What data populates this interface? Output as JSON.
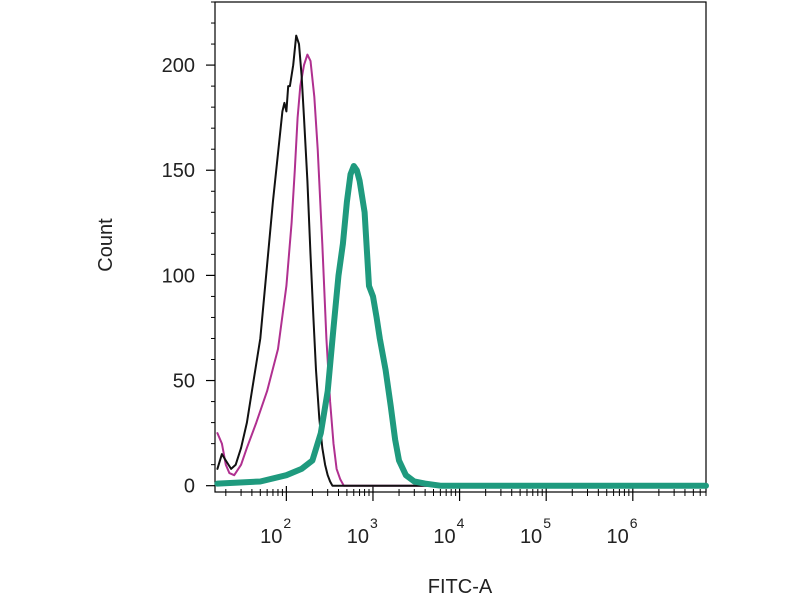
{
  "chart_data": {
    "type": "line",
    "title": "",
    "xlabel": "FITC-A",
    "ylabel": "Count",
    "x_scale": "log",
    "xlim": [
      15,
      7000000
    ],
    "ylim": [
      -3,
      230
    ],
    "x_ticks": [
      {
        "value": 100,
        "base": "10",
        "exp": "2"
      },
      {
        "value": 1000,
        "base": "10",
        "exp": "3"
      },
      {
        "value": 10000,
        "base": "10",
        "exp": "4"
      },
      {
        "value": 100000,
        "base": "10",
        "exp": "5"
      },
      {
        "value": 1000000,
        "base": "10",
        "exp": "6"
      }
    ],
    "y_ticks": [
      {
        "value": 0,
        "label": "0"
      },
      {
        "value": 50,
        "label": "50"
      },
      {
        "value": 100,
        "label": "100"
      },
      {
        "value": 150,
        "label": "150"
      },
      {
        "value": 200,
        "label": "200"
      }
    ],
    "grid": false,
    "legend": "none",
    "series": [
      {
        "color": "#111111",
        "points": [
          [
            16,
            8
          ],
          [
            18,
            15
          ],
          [
            20,
            12
          ],
          [
            23,
            8
          ],
          [
            26,
            10
          ],
          [
            30,
            18
          ],
          [
            35,
            30
          ],
          [
            40,
            45
          ],
          [
            50,
            70
          ],
          [
            60,
            105
          ],
          [
            70,
            135
          ],
          [
            80,
            158
          ],
          [
            90,
            178
          ],
          [
            95,
            182
          ],
          [
            100,
            178
          ],
          [
            105,
            190
          ],
          [
            110,
            190
          ],
          [
            120,
            200
          ],
          [
            130,
            214
          ],
          [
            140,
            210
          ],
          [
            150,
            195
          ],
          [
            160,
            175
          ],
          [
            175,
            145
          ],
          [
            190,
            110
          ],
          [
            205,
            80
          ],
          [
            220,
            55
          ],
          [
            240,
            32
          ],
          [
            260,
            18
          ],
          [
            280,
            10
          ],
          [
            300,
            5
          ],
          [
            320,
            2
          ],
          [
            340,
            0
          ],
          [
            400,
            0
          ],
          [
            1000,
            0
          ],
          [
            7000000,
            0
          ]
        ]
      },
      {
        "color": "#b03090",
        "points": [
          [
            16,
            25
          ],
          [
            18,
            20
          ],
          [
            20,
            10
          ],
          [
            22,
            6
          ],
          [
            25,
            5
          ],
          [
            30,
            10
          ],
          [
            35,
            18
          ],
          [
            45,
            30
          ],
          [
            60,
            45
          ],
          [
            80,
            65
          ],
          [
            100,
            95
          ],
          [
            115,
            125
          ],
          [
            125,
            150
          ],
          [
            135,
            175
          ],
          [
            145,
            190
          ],
          [
            160,
            200
          ],
          [
            175,
            205
          ],
          [
            190,
            202
          ],
          [
            210,
            185
          ],
          [
            230,
            160
          ],
          [
            260,
            115
          ],
          [
            290,
            70
          ],
          [
            320,
            40
          ],
          [
            350,
            20
          ],
          [
            380,
            8
          ],
          [
            420,
            3
          ],
          [
            460,
            0
          ],
          [
            1000,
            0
          ],
          [
            7000000,
            0
          ]
        ]
      },
      {
        "color": "#1f9a7e",
        "points": [
          [
            16,
            1
          ],
          [
            50,
            2
          ],
          [
            100,
            5
          ],
          [
            150,
            8
          ],
          [
            200,
            12
          ],
          [
            250,
            25
          ],
          [
            300,
            45
          ],
          [
            350,
            75
          ],
          [
            400,
            100
          ],
          [
            450,
            115
          ],
          [
            500,
            135
          ],
          [
            550,
            148
          ],
          [
            600,
            152
          ],
          [
            650,
            150
          ],
          [
            700,
            145
          ],
          [
            800,
            130
          ],
          [
            900,
            95
          ],
          [
            1000,
            90
          ],
          [
            1100,
            80
          ],
          [
            1200,
            70
          ],
          [
            1400,
            55
          ],
          [
            1600,
            38
          ],
          [
            1800,
            22
          ],
          [
            2000,
            12
          ],
          [
            2400,
            5
          ],
          [
            3000,
            2
          ],
          [
            4000,
            1
          ],
          [
            6000,
            0
          ],
          [
            7000000,
            0
          ]
        ]
      }
    ]
  }
}
